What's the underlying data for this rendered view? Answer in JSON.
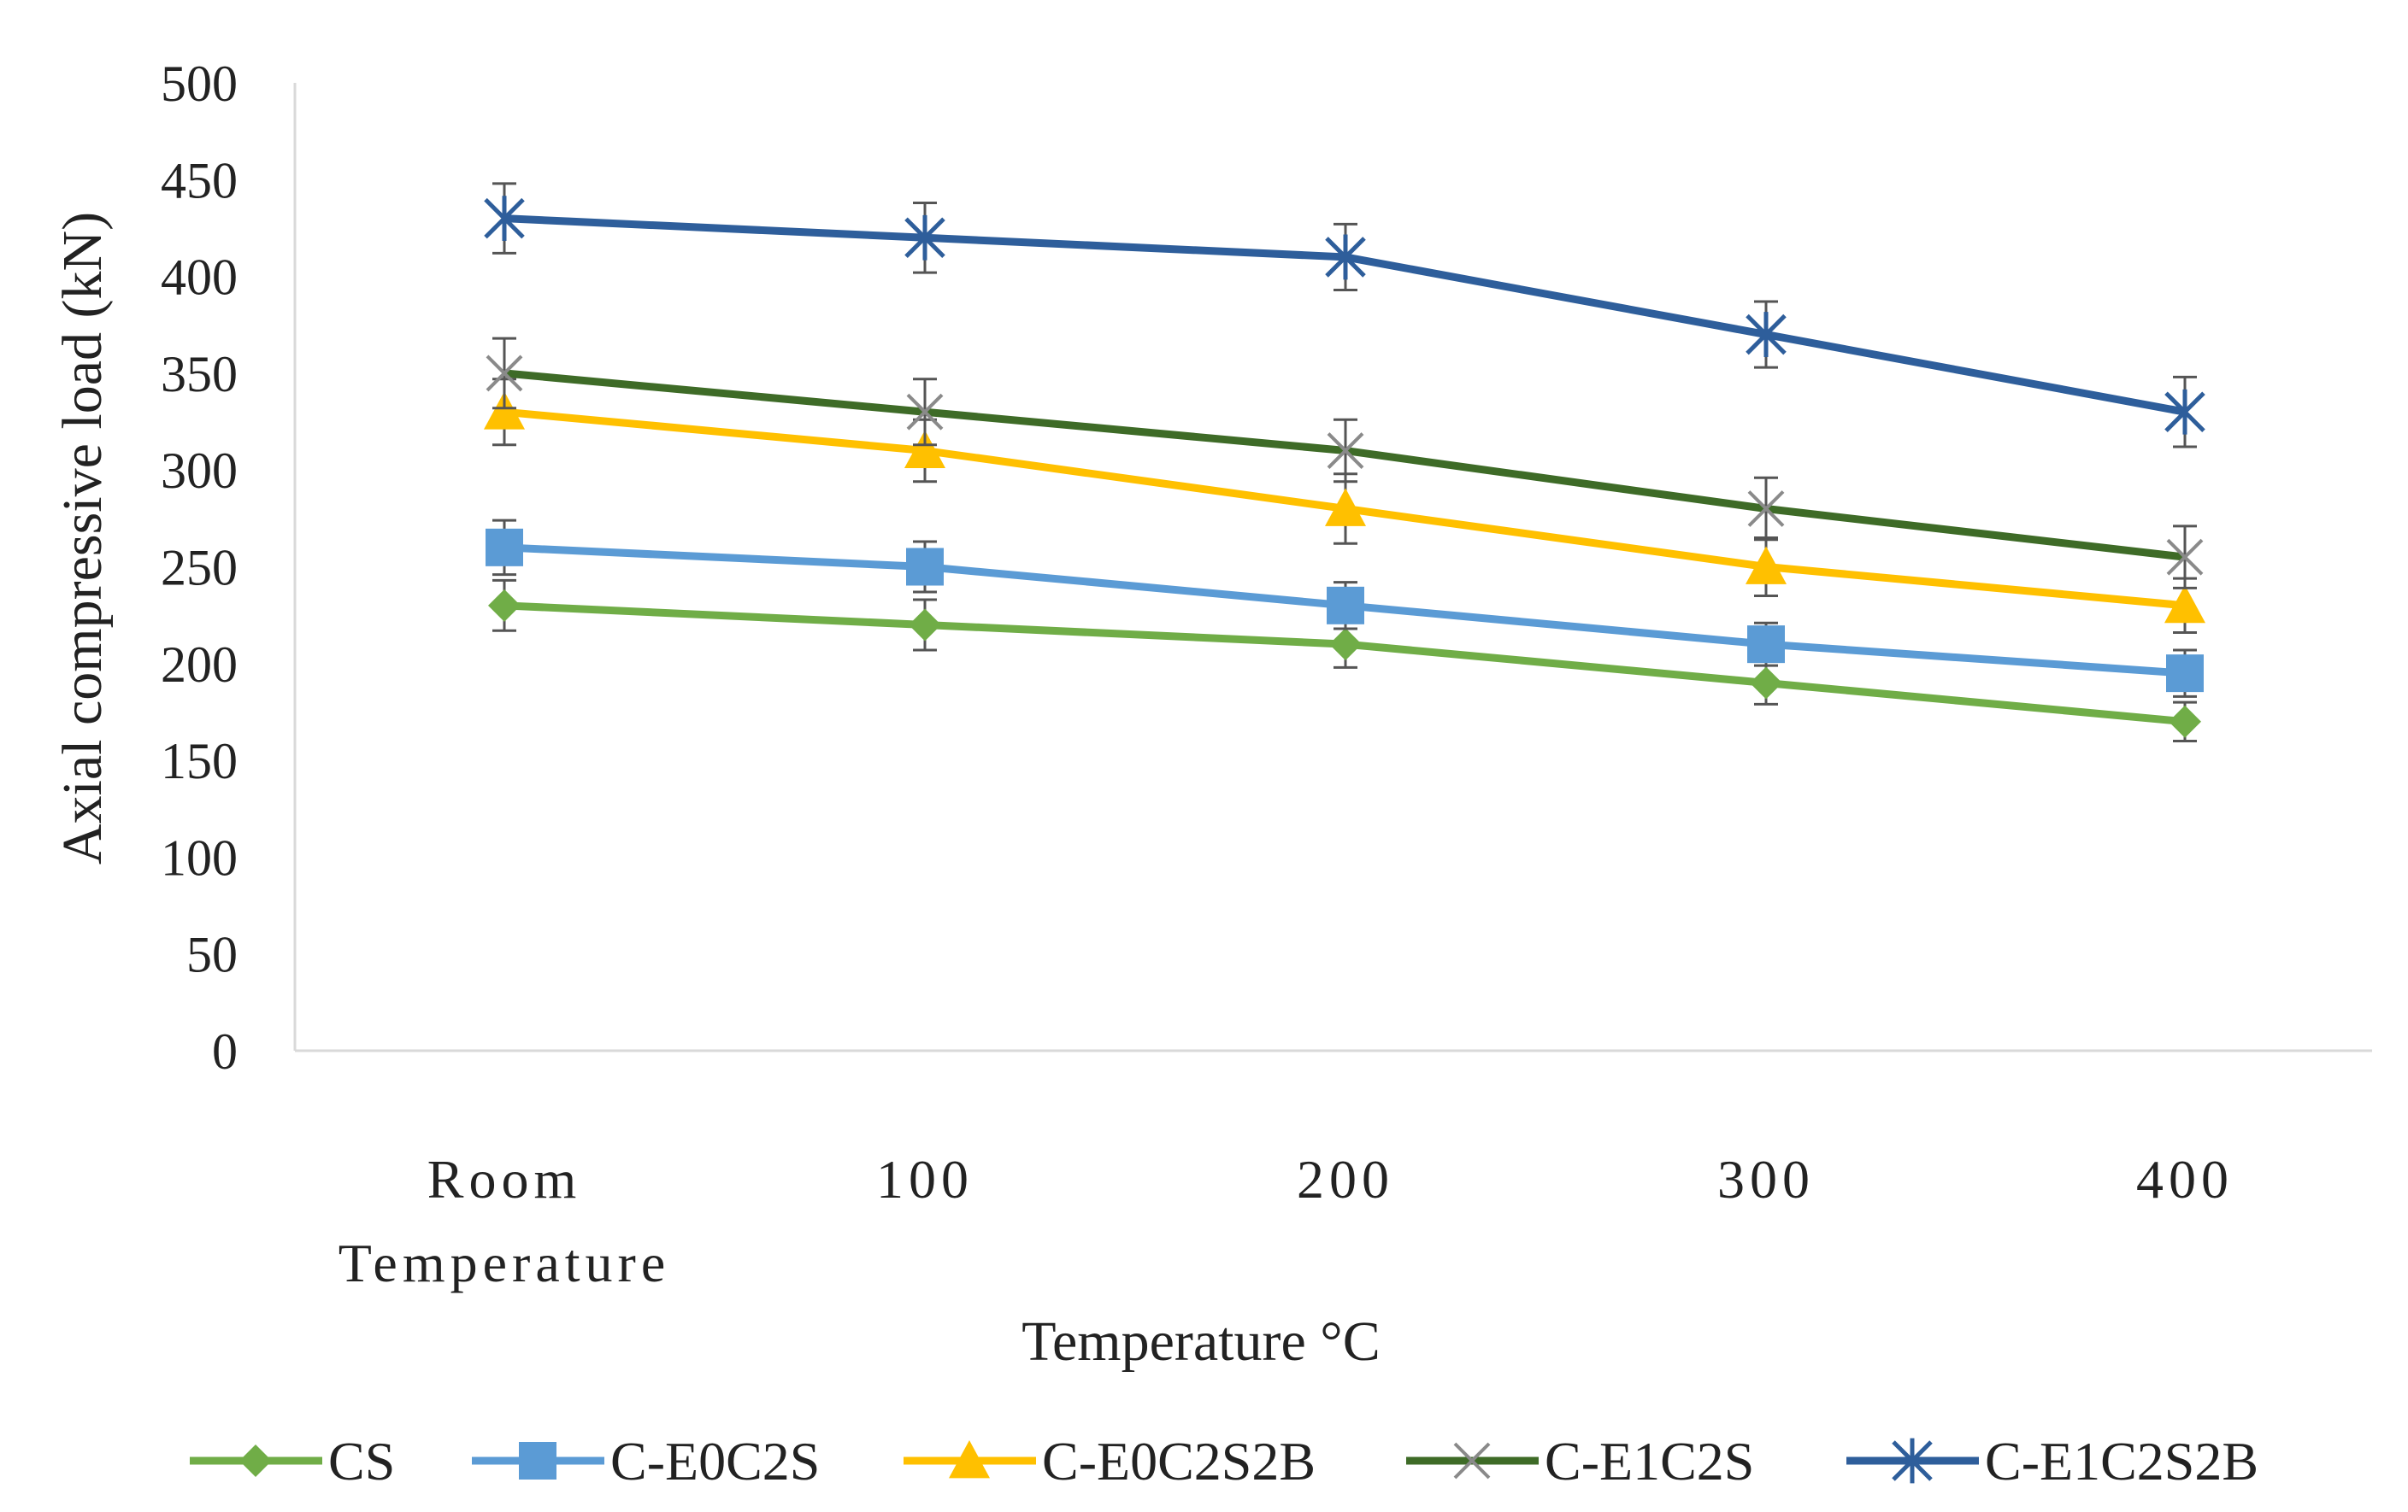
{
  "chart_data": {
    "type": "line",
    "title": "",
    "xlabel": "Temperature °C",
    "ylabel": "Axial compressive load (kN)",
    "categories": [
      [
        "Room",
        "Temperature"
      ],
      [
        "100"
      ],
      [
        "200"
      ],
      [
        "300"
      ],
      [
        "400"
      ]
    ],
    "ylim": [
      0,
      500
    ],
    "yticks": [
      0,
      50,
      100,
      150,
      200,
      250,
      300,
      350,
      400,
      450,
      500
    ],
    "grid": false,
    "legend_position": "bottom",
    "error_bars": true,
    "series": [
      {
        "name": "CS",
        "color": "#70ad47",
        "marker": "diamond",
        "values": [
          230,
          220,
          210,
          190,
          170
        ],
        "errors": [
          13,
          13,
          12,
          11,
          10
        ]
      },
      {
        "name": "C-E0C2S",
        "color": "#5b9bd5",
        "marker": "square",
        "values": [
          260,
          250,
          230,
          210,
          195
        ],
        "errors": [
          14,
          13,
          12,
          11,
          12
        ]
      },
      {
        "name": "C-E0C2S2B",
        "color": "#ffc000",
        "marker": "triangle",
        "values": [
          330,
          310,
          280,
          250,
          230
        ],
        "errors": [
          17,
          16,
          18,
          15,
          14
        ]
      },
      {
        "name": "C-E1C2S",
        "color": "#3e6b27",
        "marker": "x",
        "values": [
          350,
          330,
          310,
          280,
          255
        ],
        "errors": [
          18,
          17,
          16,
          16,
          16
        ]
      },
      {
        "name": "C-E1C2S2B",
        "color": "#2e5e9b",
        "marker": "star",
        "values": [
          430,
          420,
          410,
          370,
          330
        ],
        "errors": [
          18,
          18,
          17,
          17,
          18
        ]
      }
    ]
  }
}
